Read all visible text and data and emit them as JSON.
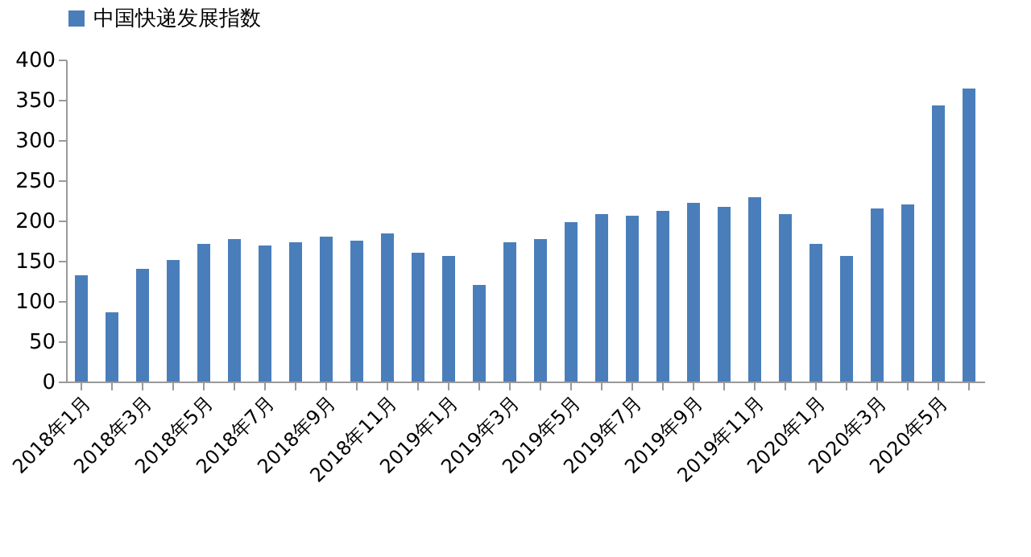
{
  "chart_data": {
    "type": "bar",
    "categories": [
      "2018年1月",
      null,
      "2018年3月",
      null,
      "2018年5月",
      null,
      "2018年7月",
      null,
      "2018年9月",
      null,
      "2018年11月",
      null,
      "2019年1月",
      null,
      "2019年3月",
      null,
      "2019年5月",
      null,
      "2019年7月",
      null,
      "2019年9月",
      null,
      "2019年11月",
      null,
      "2020年1月",
      null,
      "2020年3月",
      null,
      "2020年5月",
      null
    ],
    "series": [
      {
        "name": "中国快递发展指数",
        "color": "#4a7ebb",
        "values": [
          132,
          86,
          140,
          151,
          171,
          177,
          169,
          173,
          180,
          175,
          184,
          160,
          156,
          120,
          173,
          177,
          198,
          208,
          206,
          212,
          222,
          217,
          229,
          208,
          171,
          156,
          215,
          220,
          343,
          364
        ]
      }
    ],
    "ylim": [
      0,
      400
    ],
    "yticks": [
      0,
      50,
      100,
      150,
      200,
      250,
      300,
      350,
      400
    ],
    "grid": false,
    "legend": "top"
  }
}
